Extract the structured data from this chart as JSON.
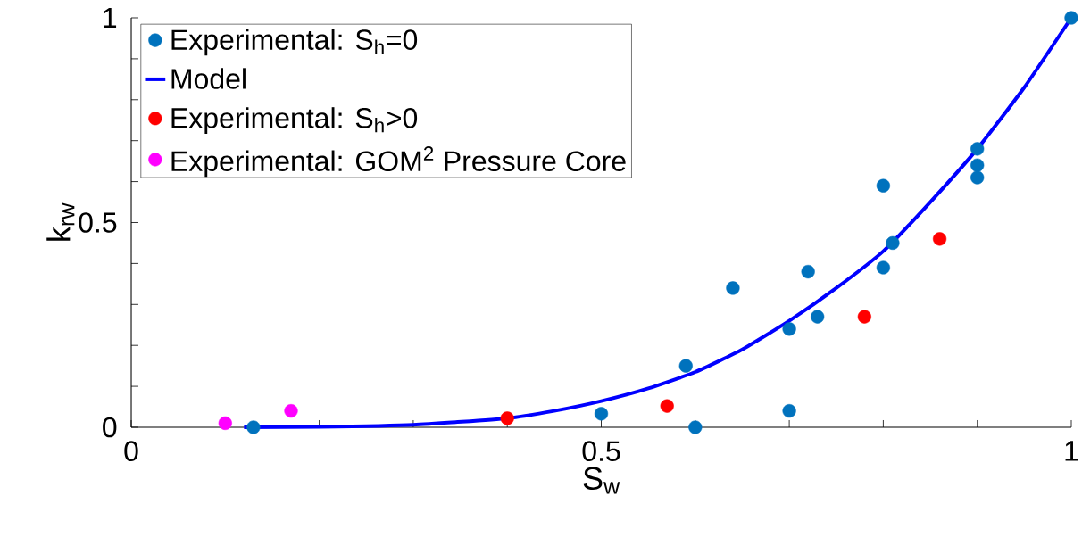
{
  "chart_data": {
    "type": "scatter",
    "xlabel": "S$_{w}$",
    "ylabel": "k$_{rw}$",
    "xlim": [
      0,
      1
    ],
    "ylim": [
      0,
      1
    ],
    "xticks": [
      0,
      {
        "value": 0.1,
        "label": null
      },
      {
        "value": 0.2,
        "label": null
      },
      {
        "value": 0.3,
        "label": null
      },
      {
        "value": 0.4,
        "label": null
      },
      0.5,
      {
        "value": 0.6,
        "label": null
      },
      {
        "value": 0.7,
        "label": null
      },
      {
        "value": 0.8,
        "label": null
      },
      {
        "value": 0.9,
        "label": null
      },
      1
    ],
    "yticks": [
      0,
      {
        "value": 0.1,
        "label": null
      },
      {
        "value": 0.2,
        "label": null
      },
      {
        "value": 0.3,
        "label": null
      },
      {
        "value": 0.4,
        "label": null
      },
      0.5,
      {
        "value": 0.6,
        "label": null
      },
      {
        "value": 0.7,
        "label": null
      },
      {
        "value": 0.8,
        "label": null
      },
      {
        "value": 0.9,
        "label": null
      },
      1
    ],
    "legend": "top left",
    "series": [
      {
        "name": "Experimental: S$_{h}$=0",
        "marker": "circle",
        "color": "#0072bd",
        "x": [
          0.13,
          0.5,
          0.6,
          0.59,
          0.64,
          0.7,
          0.7,
          0.72,
          0.73,
          0.8,
          0.8,
          0.81,
          0.9,
          0.9,
          0.9,
          1.0
        ],
        "values": [
          0.0,
          0.033,
          0.0,
          0.15,
          0.34,
          0.24,
          0.04,
          0.38,
          0.27,
          0.59,
          0.39,
          0.45,
          0.68,
          0.64,
          0.61,
          1.0
        ]
      },
      {
        "name": "Model",
        "type": "line",
        "marker": "none",
        "color": "#0000ff",
        "x": [
          0.12,
          0.2,
          0.3,
          0.4,
          0.45,
          0.5,
          0.55,
          0.6,
          0.65,
          0.7,
          0.75,
          0.8,
          0.85,
          0.9,
          0.95,
          1.0
        ],
        "values": [
          0.0,
          0.001,
          0.006,
          0.022,
          0.04,
          0.064,
          0.095,
          0.135,
          0.19,
          0.26,
          0.34,
          0.43,
          0.55,
          0.68,
          0.83,
          1.0
        ]
      },
      {
        "name": "Experimental: S$_{h}$>0",
        "marker": "circle",
        "color": "#ff0000",
        "x": [
          0.4,
          0.57,
          0.78,
          0.86
        ],
        "values": [
          0.022,
          0.052,
          0.27,
          0.46
        ]
      },
      {
        "name": "Experimental: GOM$^{2}$ Pressure Core",
        "marker": "circle",
        "color": "#ff00ff",
        "x": [
          0.1,
          0.17
        ],
        "values": [
          0.01,
          0.04
        ]
      }
    ]
  }
}
